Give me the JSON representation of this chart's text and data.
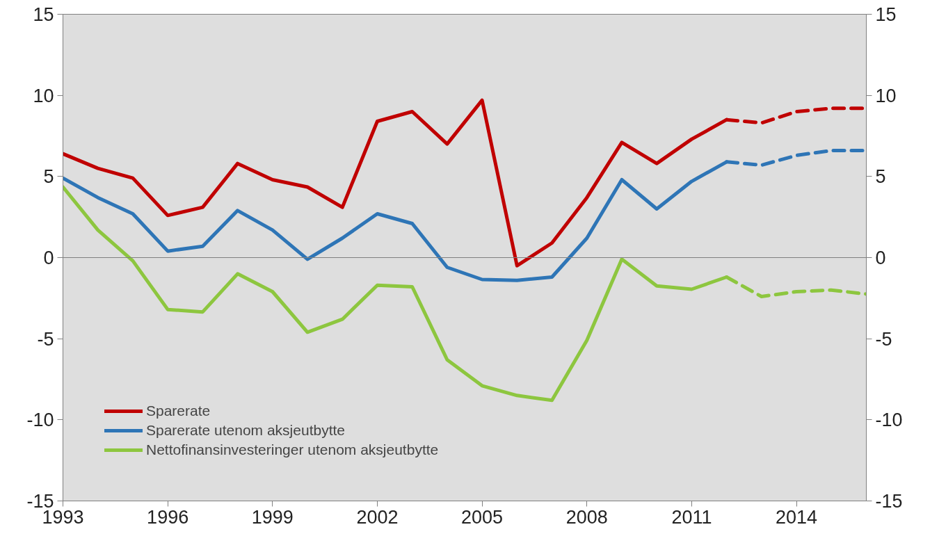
{
  "chart_data": {
    "type": "line",
    "x": [
      1993,
      1994,
      1995,
      1996,
      1997,
      1998,
      1999,
      2000,
      2001,
      2002,
      2003,
      2004,
      2005,
      2006,
      2007,
      2008,
      2009,
      2010,
      2011,
      2012
    ],
    "series": [
      {
        "name": "Sparerate",
        "color": "#c00000",
        "values": [
          6.4,
          5.5,
          4.9,
          2.6,
          3.1,
          5.8,
          4.8,
          4.35,
          3.1,
          8.4,
          9.0,
          7.0,
          9.7,
          -0.5,
          0.9,
          3.7,
          7.1,
          5.8,
          7.3,
          8.5
        ]
      },
      {
        "name": "Sparerate utenom aksjeutbytte",
        "color": "#2e75b6",
        "values": [
          4.9,
          3.7,
          2.7,
          0.4,
          0.7,
          2.9,
          1.7,
          -0.1,
          1.2,
          2.7,
          2.1,
          -0.6,
          -1.35,
          -1.4,
          -1.2,
          1.2,
          4.8,
          3.0,
          4.7,
          5.9
        ]
      },
      {
        "name": "Nettofinansinvesteringer utenom aksjeutbytte",
        "color": "#8dc63f",
        "values": [
          4.35,
          1.7,
          -0.2,
          -3.2,
          -3.35,
          -1.0,
          -2.1,
          -4.6,
          -3.8,
          -1.7,
          -1.8,
          -6.3,
          -7.9,
          -8.5,
          -8.8,
          -5.1,
          -0.1,
          -1.75,
          -1.95,
          -1.2
        ]
      },
      {
        "color": "#c00000",
        "line_style": "dashed",
        "x": [
          2012,
          2013,
          2014,
          2015,
          2016
        ],
        "values": [
          8.5,
          8.3,
          9.0,
          9.2,
          9.2
        ]
      },
      {
        "color": "#2e75b6",
        "line_style": "dashed",
        "x": [
          2012,
          2013,
          2014,
          2015,
          2016
        ],
        "values": [
          5.9,
          5.7,
          6.3,
          6.6,
          6.6
        ]
      },
      {
        "color": "#8dc63f",
        "line_style": "dashed",
        "x": [
          2012,
          2013,
          2014,
          2015,
          2016
        ],
        "values": [
          -1.2,
          -2.4,
          -2.1,
          -2.0,
          -2.25
        ]
      }
    ],
    "xlim": [
      1993,
      2016
    ],
    "xticks": [
      1993,
      1996,
      1999,
      2002,
      2005,
      2008,
      2011,
      2014
    ],
    "ylim": [
      -15,
      15
    ],
    "yticks": [
      -15,
      -10,
      -5,
      0,
      5,
      10,
      15
    ],
    "y2lim": [
      -15,
      15
    ],
    "y2ticks": [
      -15,
      -10,
      -5,
      0,
      5,
      10,
      15
    ],
    "ref_lines": [
      {
        "axis": "y",
        "value": 0,
        "color": "#808080"
      }
    ],
    "line_style": "solid",
    "grid": false,
    "legend": "bottom left"
  }
}
